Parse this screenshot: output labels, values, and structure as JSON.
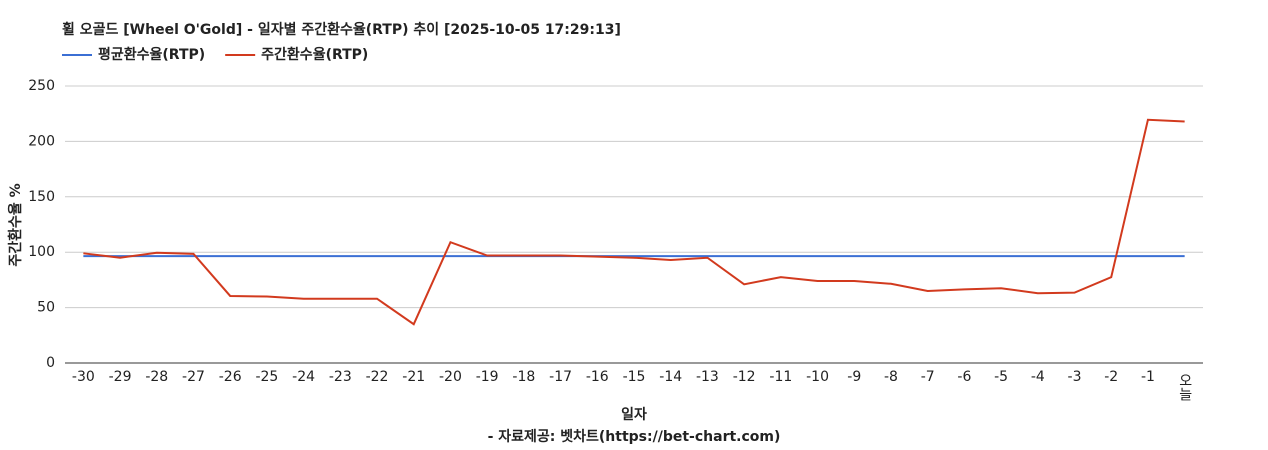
{
  "chart_data": {
    "type": "line",
    "title": "휠 오골드 [Wheel O'Gold] - 일자별 주간환수율(RTP) 추이 [2025-10-05 17:29:13]",
    "x_label": "일자",
    "y_label": "주간환수율 %",
    "source": "- 자료제공: 벳차트(https://bet-chart.com)",
    "legend": "top-left",
    "grid": true,
    "categories": [
      "-30",
      "-29",
      "-28",
      "-27",
      "-26",
      "-25",
      "-24",
      "-23",
      "-22",
      "-21",
      "-20",
      "-19",
      "-18",
      "-17",
      "-16",
      "-15",
      "-14",
      "-13",
      "-12",
      "-11",
      "-10",
      "-9",
      "-8",
      "-7",
      "-6",
      "-5",
      "-4",
      "-3",
      "-2",
      "-1",
      "오늘"
    ],
    "ylim": [
      0,
      250
    ],
    "yticks": [
      0,
      50,
      100,
      150,
      200,
      250
    ],
    "series": [
      {
        "name": "평균환수율(RTP)",
        "color": "#3b6fd4",
        "values": [
          96.5,
          96.5,
          96.5,
          96.5,
          96.5,
          96.5,
          96.5,
          96.5,
          96.5,
          96.5,
          96.5,
          96.5,
          96.5,
          96.5,
          96.5,
          96.5,
          96.5,
          96.5,
          96.5,
          96.5,
          96.5,
          96.5,
          96.5,
          96.5,
          96.5,
          96.5,
          96.5,
          96.5,
          96.5,
          96.5,
          96.5
        ]
      },
      {
        "name": "주간환수율(RTP)",
        "color": "#d23a1e",
        "values": [
          99,
          95,
          99.5,
          98.5,
          60.5,
          60,
          58,
          58,
          58,
          35,
          109,
          97,
          97,
          97,
          96,
          95,
          93,
          95,
          71,
          77.5,
          74,
          74,
          71.5,
          65,
          66.5,
          67.5,
          63,
          63.5,
          77.5,
          219.5,
          218
        ]
      }
    ]
  }
}
